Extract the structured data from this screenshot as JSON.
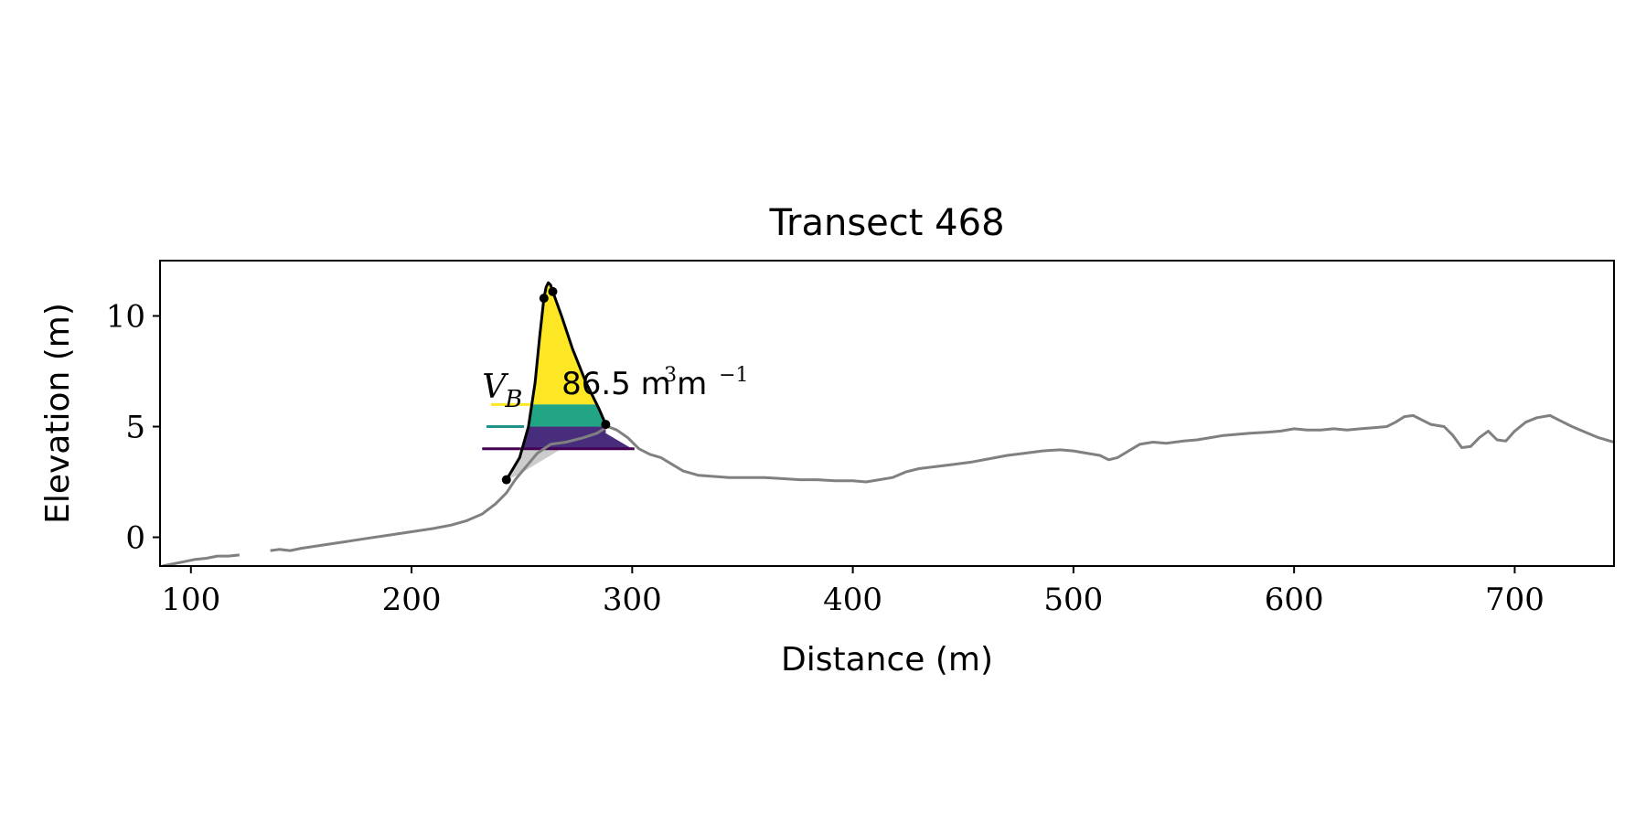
{
  "chart_data": {
    "type": "line",
    "title": "Transect 468",
    "xlabel": "Distance (m)",
    "ylabel": "Elevation (m)",
    "xlim": [
      86,
      745
    ],
    "ylim": [
      -1.3,
      12.5
    ],
    "xticks": [
      100,
      200,
      300,
      400,
      500,
      600,
      700
    ],
    "yticks": [
      0,
      5,
      10
    ],
    "grid": false,
    "annotation": {
      "symbol": "V",
      "subscript": "B",
      "value_text": "86.5 m",
      "unit_sup1": "3",
      "unit_mid": " m",
      "unit_sup2": "−1",
      "x": 232,
      "y": 6.3
    },
    "profile_segments": [
      [
        [
          87,
          -1.3
        ],
        [
          92,
          -1.2
        ],
        [
          97,
          -1.1
        ],
        [
          102,
          -1.0
        ],
        [
          107,
          -0.95
        ],
        [
          112,
          -0.85
        ],
        [
          117,
          -0.85
        ],
        [
          122,
          -0.8
        ]
      ],
      [
        [
          136,
          -0.6
        ],
        [
          140,
          -0.55
        ],
        [
          145,
          -0.6
        ],
        [
          150,
          -0.5
        ],
        [
          160,
          -0.35
        ],
        [
          170,
          -0.2
        ],
        [
          180,
          -0.05
        ],
        [
          190,
          0.1
        ],
        [
          200,
          0.25
        ],
        [
          210,
          0.4
        ],
        [
          218,
          0.55
        ],
        [
          225,
          0.75
        ],
        [
          232,
          1.05
        ],
        [
          238,
          1.5
        ],
        [
          243,
          2.0
        ],
        [
          247,
          2.6
        ],
        [
          252,
          3.2
        ],
        [
          257,
          3.8
        ],
        [
          263,
          4.2
        ],
        [
          270,
          4.3
        ],
        [
          278,
          4.5
        ],
        [
          284,
          4.7
        ],
        [
          289,
          5.0
        ],
        [
          293,
          4.85
        ],
        [
          298,
          4.5
        ],
        [
          303,
          4.0
        ],
        [
          308,
          3.75
        ],
        [
          313,
          3.6
        ],
        [
          318,
          3.3
        ],
        [
          323,
          3.0
        ],
        [
          330,
          2.8
        ],
        [
          337,
          2.75
        ],
        [
          344,
          2.7
        ],
        [
          352,
          2.7
        ],
        [
          360,
          2.7
        ],
        [
          368,
          2.65
        ],
        [
          376,
          2.6
        ],
        [
          384,
          2.6
        ],
        [
          392,
          2.55
        ],
        [
          400,
          2.55
        ],
        [
          406,
          2.5
        ],
        [
          412,
          2.6
        ],
        [
          418,
          2.7
        ],
        [
          424,
          2.95
        ],
        [
          430,
          3.1
        ],
        [
          438,
          3.2
        ],
        [
          446,
          3.3
        ],
        [
          454,
          3.4
        ],
        [
          462,
          3.55
        ],
        [
          470,
          3.7
        ],
        [
          478,
          3.8
        ],
        [
          486,
          3.9
        ],
        [
          494,
          3.95
        ],
        [
          500,
          3.9
        ],
        [
          506,
          3.8
        ],
        [
          512,
          3.7
        ],
        [
          516,
          3.5
        ],
        [
          520,
          3.6
        ],
        [
          525,
          3.9
        ],
        [
          530,
          4.2
        ],
        [
          536,
          4.3
        ],
        [
          542,
          4.25
        ],
        [
          550,
          4.35
        ],
        [
          556,
          4.4
        ],
        [
          562,
          4.5
        ],
        [
          568,
          4.6
        ],
        [
          574,
          4.65
        ],
        [
          580,
          4.7
        ],
        [
          588,
          4.75
        ],
        [
          594,
          4.8
        ],
        [
          600,
          4.9
        ],
        [
          606,
          4.85
        ],
        [
          612,
          4.85
        ],
        [
          618,
          4.9
        ],
        [
          624,
          4.85
        ],
        [
          630,
          4.9
        ],
        [
          636,
          4.95
        ],
        [
          642,
          5.0
        ],
        [
          646,
          5.2
        ],
        [
          650,
          5.45
        ],
        [
          654,
          5.5
        ],
        [
          658,
          5.3
        ],
        [
          662,
          5.1
        ],
        [
          668,
          5.0
        ],
        [
          672,
          4.6
        ],
        [
          676,
          4.05
        ],
        [
          680,
          4.1
        ],
        [
          684,
          4.5
        ],
        [
          688,
          4.8
        ],
        [
          692,
          4.4
        ],
        [
          696,
          4.35
        ],
        [
          700,
          4.8
        ],
        [
          705,
          5.2
        ],
        [
          710,
          5.4
        ],
        [
          716,
          5.5
        ],
        [
          720,
          5.3
        ],
        [
          726,
          5.0
        ],
        [
          732,
          4.75
        ],
        [
          738,
          4.5
        ],
        [
          745,
          4.3
        ]
      ]
    ],
    "dune_outline": [
      [
        243,
        2.6
      ],
      [
        249,
        3.6
      ],
      [
        253,
        5.0
      ],
      [
        256,
        7.0
      ],
      [
        258,
        9.0
      ],
      [
        260,
        10.8
      ],
      [
        261,
        11.3
      ],
      [
        262,
        11.5
      ],
      [
        263,
        11.4
      ],
      [
        264,
        11.1
      ],
      [
        268,
        10.0
      ],
      [
        273,
        8.5
      ],
      [
        279,
        7.0
      ],
      [
        285,
        5.8
      ],
      [
        288,
        5.1
      ]
    ],
    "key_points": [
      [
        243,
        2.6
      ],
      [
        260,
        10.8
      ],
      [
        264,
        11.1
      ],
      [
        288,
        5.1
      ]
    ],
    "volume_bands": [
      {
        "level": 6.0,
        "color": "#fde725",
        "bar_x": [
          236,
          254
        ],
        "fill_to": 11.5
      },
      {
        "level": 5.0,
        "color": "#21918c",
        "bar_x": [
          234,
          251
        ],
        "fill_to": 6.0
      },
      {
        "level": 4.0,
        "color": "#440154",
        "bar_x": [
          232,
          249
        ],
        "fill_to": 5.0
      }
    ],
    "base_region_color": "#cccccc",
    "colors": {
      "profile": "#808080",
      "outline": "#000000",
      "purple_fill": "#472d7b",
      "teal_fill": "#21a585",
      "yellow_fill": "#fde725"
    }
  }
}
